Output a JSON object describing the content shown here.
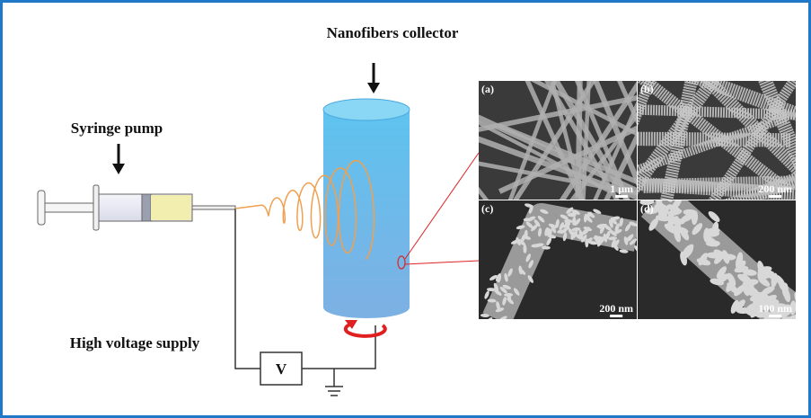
{
  "labels": {
    "collector": "Nanofibers collector",
    "syringe": "Syringe pump",
    "supply": "High voltage supply",
    "voltmeter": "V"
  },
  "panels": [
    {
      "tag": "(a)",
      "scale": "1 μm"
    },
    {
      "tag": "(b)",
      "scale": "200 nm"
    },
    {
      "tag": "(c)",
      "scale": "200 nm"
    },
    {
      "tag": "(d)",
      "scale": "100 nm"
    }
  ]
}
